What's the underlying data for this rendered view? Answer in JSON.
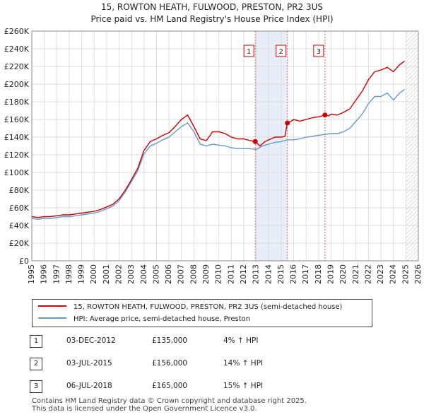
{
  "title": {
    "line1": "15, ROWTON HEATH, FULWOOD, PRESTON, PR2 3US",
    "line2": "Price paid vs. HM Land Registry's House Price Index (HPI)"
  },
  "colors": {
    "property": "#cc0000",
    "hpi": "#6699cc",
    "shade": "#e8eef8",
    "grid": "#dddddd"
  },
  "chart_data": {
    "type": "line",
    "xlim": [
      1995,
      2026
    ],
    "ylim": [
      0,
      260000
    ],
    "x_ticks": [
      "1995",
      "1996",
      "1997",
      "1998",
      "1999",
      "2000",
      "2001",
      "2002",
      "2003",
      "2004",
      "2005",
      "2006",
      "2007",
      "2008",
      "2009",
      "2010",
      "2011",
      "2012",
      "2013",
      "2014",
      "2015",
      "2016",
      "2017",
      "2018",
      "2019",
      "2020",
      "2021",
      "2022",
      "2023",
      "2024",
      "2025",
      "2026"
    ],
    "y_ticks": [
      {
        "value": 0,
        "label": "£0"
      },
      {
        "value": 20000,
        "label": "£20K"
      },
      {
        "value": 40000,
        "label": "£40K"
      },
      {
        "value": 60000,
        "label": "£60K"
      },
      {
        "value": 80000,
        "label": "£80K"
      },
      {
        "value": 100000,
        "label": "£100K"
      },
      {
        "value": 120000,
        "label": "£120K"
      },
      {
        "value": 140000,
        "label": "£140K"
      },
      {
        "value": 160000,
        "label": "£160K"
      },
      {
        "value": 180000,
        "label": "£180K"
      },
      {
        "value": 200000,
        "label": "£200K"
      },
      {
        "value": 220000,
        "label": "£220K"
      },
      {
        "value": 240000,
        "label": "£240K"
      },
      {
        "value": 260000,
        "label": "£260K"
      }
    ],
    "grid": true,
    "series": [
      {
        "name": "15, ROWTON HEATH, FULWOOD, PRESTON, PR2 3US (semi-detached house)",
        "color": "#cc0000",
        "x": [
          1995.0,
          1995.5,
          1996.0,
          1996.5,
          1997.0,
          1997.5,
          1998.0,
          1998.5,
          1999.0,
          1999.5,
          2000.0,
          2000.5,
          2001.0,
          2001.5,
          2002.0,
          2002.5,
          2003.0,
          2003.5,
          2004.0,
          2004.5,
          2005.0,
          2005.5,
          2006.0,
          2006.5,
          2007.0,
          2007.5,
          2008.0,
          2008.5,
          2009.0,
          2009.5,
          2010.0,
          2010.5,
          2011.0,
          2011.5,
          2012.0,
          2012.5,
          2012.92,
          2013.3,
          2013.7,
          2014.0,
          2014.5,
          2015.0,
          2015.3,
          2015.5,
          2015.8,
          2016.0,
          2016.5,
          2017.0,
          2017.5,
          2018.0,
          2018.51,
          2018.8,
          2019.0,
          2019.5,
          2020.0,
          2020.5,
          2021.0,
          2021.5,
          2022.0,
          2022.5,
          2023.0,
          2023.5,
          2024.0,
          2024.5,
          2024.9
        ],
        "values": [
          50000,
          49000,
          50000,
          50000,
          51000,
          52000,
          52000,
          53000,
          54000,
          55000,
          56000,
          58000,
          61000,
          64000,
          70000,
          80000,
          92000,
          105000,
          125000,
          135000,
          138000,
          142000,
          145000,
          152000,
          160000,
          165000,
          152000,
          138000,
          136000,
          146000,
          146000,
          144000,
          140000,
          138000,
          138000,
          136000,
          135000,
          130000,
          135000,
          137000,
          140000,
          140000,
          141000,
          156000,
          158000,
          160000,
          158000,
          160000,
          162000,
          163000,
          165000,
          164000,
          166000,
          165000,
          168000,
          172000,
          182000,
          192000,
          205000,
          214000,
          216000,
          219000,
          214000,
          222000,
          226000
        ]
      },
      {
        "name": "HPI: Average price, semi-detached house, Preston",
        "color": "#6699cc",
        "x": [
          1995.0,
          1995.5,
          1996.0,
          1996.5,
          1997.0,
          1997.5,
          1998.0,
          1998.5,
          1999.0,
          1999.5,
          2000.0,
          2000.5,
          2001.0,
          2001.5,
          2002.0,
          2002.5,
          2003.0,
          2003.5,
          2004.0,
          2004.5,
          2005.0,
          2005.5,
          2006.0,
          2006.5,
          2007.0,
          2007.5,
          2008.0,
          2008.5,
          2009.0,
          2009.5,
          2010.0,
          2010.5,
          2011.0,
          2011.5,
          2012.0,
          2012.5,
          2013.0,
          2013.5,
          2014.0,
          2014.5,
          2015.0,
          2015.5,
          2016.0,
          2016.5,
          2017.0,
          2017.5,
          2018.0,
          2018.5,
          2019.0,
          2019.5,
          2020.0,
          2020.5,
          2021.0,
          2021.5,
          2022.0,
          2022.5,
          2023.0,
          2023.5,
          2024.0,
          2024.5,
          2024.9
        ],
        "values": [
          48000,
          47000,
          48000,
          48000,
          49000,
          50000,
          50000,
          51000,
          52000,
          53000,
          54000,
          56000,
          59000,
          62000,
          68000,
          78000,
          90000,
          102000,
          121000,
          130000,
          133000,
          137000,
          140000,
          146000,
          152000,
          156000,
          146000,
          132000,
          130000,
          132000,
          131000,
          130000,
          128000,
          127000,
          127000,
          127000,
          126000,
          130000,
          132000,
          134000,
          135000,
          137000,
          137000,
          138000,
          140000,
          141000,
          142000,
          143000,
          144000,
          144000,
          146000,
          150000,
          158000,
          166000,
          178000,
          186000,
          186000,
          190000,
          182000,
          190000,
          194000
        ]
      }
    ],
    "transactions": [
      {
        "label": "1",
        "date": "03-DEC-2012",
        "x": 2012.92,
        "price": 135000,
        "hpi": "4% ↑ HPI"
      },
      {
        "label": "2",
        "date": "03-JUL-2015",
        "x": 2015.5,
        "price": 156000,
        "hpi": "14% ↑ HPI"
      },
      {
        "label": "3",
        "date": "06-JUL-2018",
        "x": 2018.51,
        "price": 165000,
        "hpi": "15% ↑ HPI"
      }
    ],
    "table_rows": [
      {
        "num": "1",
        "date": "03-DEC-2012",
        "price": "£135,000",
        "hpi": "4% ↑ HPI"
      },
      {
        "num": "2",
        "date": "03-JUL-2015",
        "price": "£156,000",
        "hpi": "14% ↑ HPI"
      },
      {
        "num": "3",
        "date": "06-JUL-2018",
        "price": "£165,000",
        "hpi": "15% ↑ HPI"
      }
    ],
    "forecast_start": 2025.0
  },
  "legend": {
    "property": "15, ROWTON HEATH, FULWOOD, PRESTON, PR2 3US (semi-detached house)",
    "hpi": "HPI: Average price, semi-detached house, Preston"
  },
  "footer": {
    "line1": "Contains HM Land Registry data © Crown copyright and database right 2025.",
    "line2": "This data is licensed under the Open Government Licence v3.0."
  }
}
